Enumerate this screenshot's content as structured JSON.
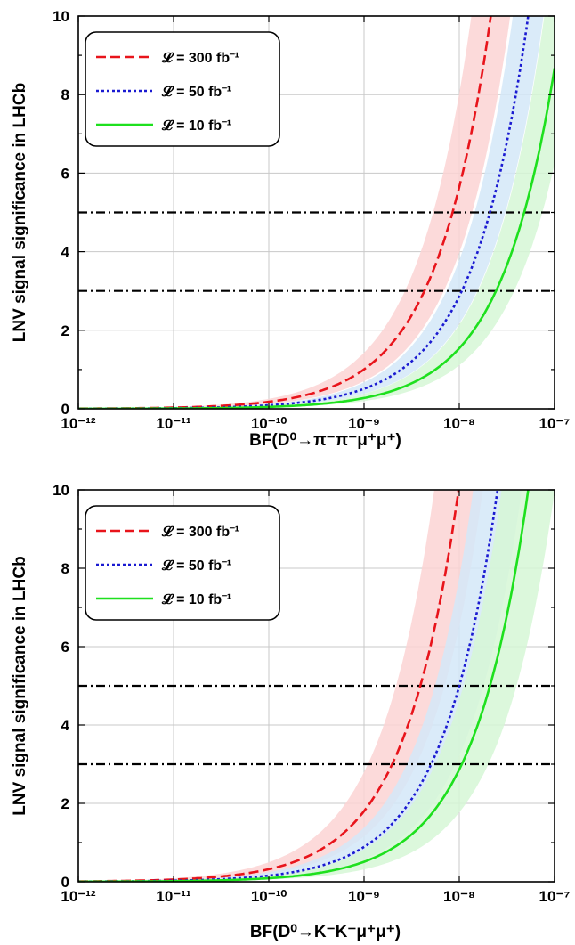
{
  "chart_data": [
    {
      "type": "line",
      "xlabel": "BF(D⁰→π⁻π⁻μ⁺μ⁺)",
      "ylabel": "LNV signal significance in LHCb",
      "xscale": "log",
      "xlim": [
        1e-12,
        1e-07
      ],
      "ylim": [
        0,
        10
      ],
      "x_tick_labels": [
        "10⁻¹²",
        "10⁻¹¹",
        "10⁻¹⁰",
        "10⁻⁹",
        "10⁻⁸",
        "10⁻⁷"
      ],
      "y_tick_labels": [
        "0",
        "2",
        "4",
        "6",
        "8",
        "10"
      ],
      "grid": true,
      "legend_position": "top-left",
      "reference_lines": [
        {
          "y": 3,
          "style": "dash-dot",
          "color": "#000000"
        },
        {
          "y": 5,
          "style": "dash-dot",
          "color": "#000000"
        }
      ],
      "series": [
        {
          "name": "𝓛 = 300 fb⁻¹",
          "color": "#e8141b",
          "band_color": "#fbd3d3",
          "line_style": "dashed",
          "x_at_5": 8.5e-09,
          "band_factor": 1.6
        },
        {
          "name": "𝓛 = 50 fb⁻¹",
          "color": "#1a1ad1",
          "band_color": "#d4e8f8",
          "line_style": "dotted",
          "x_at_5": 2.1e-08,
          "band_factor": 1.45
        },
        {
          "name": "𝓛 = 10 fb⁻¹",
          "color": "#1ee01e",
          "band_color": "#d6f7d6",
          "line_style": "solid",
          "x_at_5": 4.8e-08,
          "band_factor": 1.55
        }
      ]
    },
    {
      "type": "line",
      "xlabel": "BF(D⁰→K⁻K⁻μ⁺μ⁺)",
      "ylabel": "LNV signal significance in LHCb",
      "xscale": "log",
      "xlim": [
        1e-12,
        1e-07
      ],
      "ylim": [
        0,
        10
      ],
      "x_tick_labels": [
        "10⁻¹²",
        "10⁻¹¹",
        "10⁻¹⁰",
        "10⁻⁹",
        "10⁻⁸",
        "10⁻⁷"
      ],
      "y_tick_labels": [
        "0",
        "2",
        "4",
        "6",
        "8",
        "10"
      ],
      "grid": true,
      "legend_position": "top-left",
      "reference_lines": [
        {
          "y": 3,
          "style": "dash-dot",
          "color": "#000000"
        },
        {
          "y": 5,
          "style": "dash-dot",
          "color": "#000000"
        }
      ],
      "series": [
        {
          "name": "𝓛 = 300 fb⁻¹",
          "color": "#e8141b",
          "band_color": "#fbd3d3",
          "line_style": "dashed",
          "x_at_5": 3.9e-09,
          "band_factor": 1.8
        },
        {
          "name": "𝓛 = 50 fb⁻¹",
          "color": "#1a1ad1",
          "band_color": "#d4e8f8",
          "line_style": "dotted",
          "x_at_5": 1e-08,
          "band_factor": 1.8
        },
        {
          "name": "𝓛 = 10 fb⁻¹",
          "color": "#1ee01e",
          "band_color": "#d6f7d6",
          "line_style": "solid",
          "x_at_5": 2.1e-08,
          "band_factor": 1.9
        }
      ]
    }
  ]
}
